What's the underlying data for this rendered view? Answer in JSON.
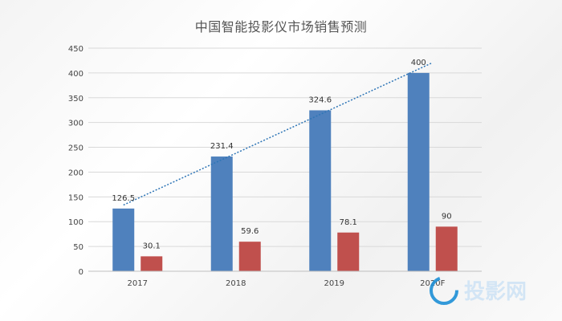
{
  "chart_data": {
    "type": "bar",
    "title": "中国智能投影仪市场销售预测",
    "categories": [
      "2017",
      "2018",
      "2019",
      "2020F"
    ],
    "series": [
      {
        "values": [
          126.5,
          231.4,
          324.6,
          400
        ],
        "color": "#4F81BD"
      },
      {
        "values": [
          30.1,
          59.6,
          78.1,
          90
        ],
        "color": "#C0504D"
      }
    ],
    "value_labels": [
      [
        "126.5",
        "231.4",
        "324.6",
        "400"
      ],
      [
        "30.1",
        "59.6",
        "78.1",
        "90"
      ]
    ],
    "trendline": {
      "series_index": 0,
      "style": "dotted",
      "color": "#2E75B6"
    },
    "ylim": [
      0,
      450
    ],
    "yticks": [
      0,
      50,
      100,
      150,
      200,
      250,
      300,
      350,
      400,
      450
    ],
    "ytick_labels": [
      "0",
      "50",
      "100",
      "150",
      "200",
      "250",
      "300",
      "350",
      "400",
      "450"
    ],
    "grid": true,
    "xlabel": "",
    "ylabel": ""
  },
  "watermark": {
    "text": "投影网",
    "icon": "ring-logo-icon",
    "color": "#1E90D6"
  }
}
